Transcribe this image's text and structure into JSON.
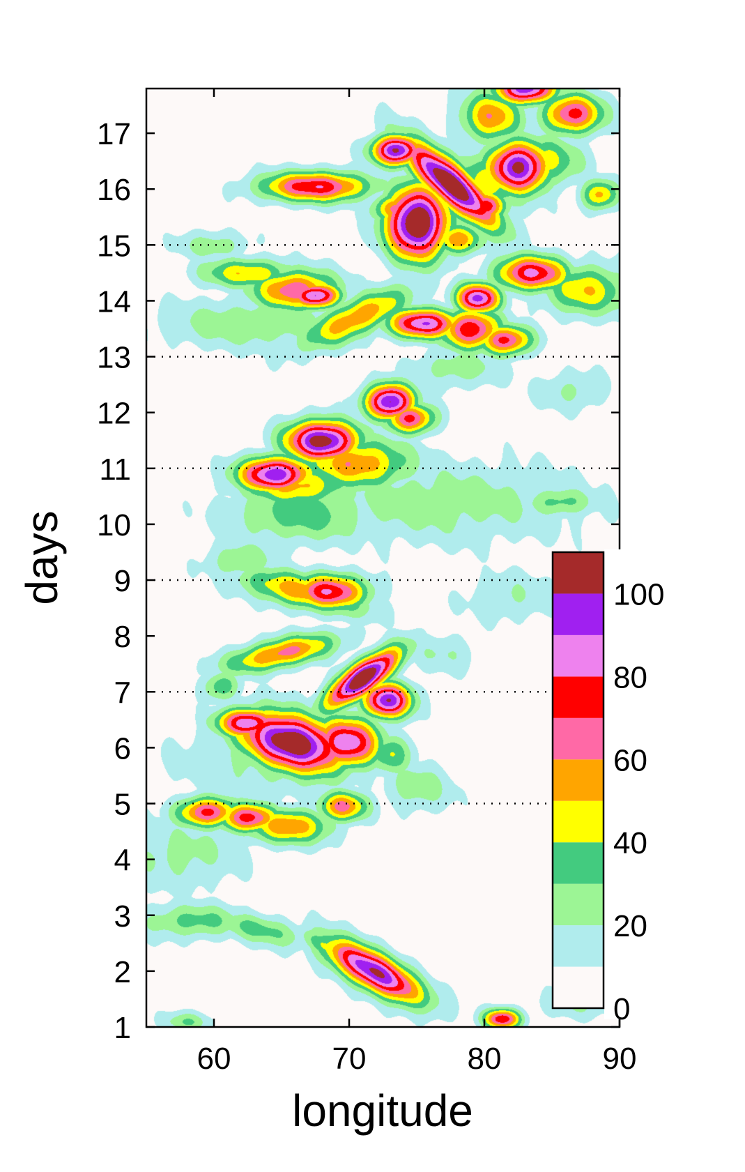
{
  "chart_data": {
    "type": "heatmap",
    "xlabel": "longitude",
    "ylabel": "days",
    "xlim": [
      55,
      90
    ],
    "ylim": [
      1,
      17.8
    ],
    "xticks": [
      60,
      70,
      80,
      90
    ],
    "yticks": [
      1,
      2,
      3,
      4,
      5,
      6,
      7,
      8,
      9,
      10,
      11,
      12,
      13,
      14,
      15,
      16,
      17
    ],
    "reference_lines_days": [
      5,
      7,
      9,
      11,
      13,
      15
    ],
    "colorbar": {
      "ticks": [
        0,
        20,
        40,
        60,
        80,
        100
      ],
      "bounds": [
        0,
        10,
        20,
        30,
        40,
        50,
        60,
        70,
        80,
        90,
        100,
        110
      ],
      "colors": [
        "#fdf9f8",
        "#b0eced",
        "#9cf595",
        "#43cb7f",
        "#ffff00",
        "#ffa500",
        "#ff69a6",
        "#ff0000",
        "#ee82ee",
        "#a020f0",
        "#a52a2a"
      ]
    },
    "blobs": [
      {
        "lon": 71.8,
        "day": 2.0,
        "value": 100,
        "dlon": 4.0,
        "dday": 0.4,
        "tilt": 0.12
      },
      {
        "lon": 69.0,
        "day": 2.35,
        "value": 45,
        "dlon": 2.8,
        "dday": 0.25,
        "tilt": 0.12
      },
      {
        "lon": 58.5,
        "day": 2.9,
        "value": 30,
        "dlon": 4.5,
        "dday": 0.35,
        "tilt": 0.0
      },
      {
        "lon": 63.5,
        "day": 2.75,
        "value": 30,
        "dlon": 4.0,
        "dday": 0.3,
        "tilt": 0.05
      },
      {
        "lon": 59.5,
        "day": 4.85,
        "value": 70,
        "dlon": 2.5,
        "dday": 0.3,
        "tilt": 0.0
      },
      {
        "lon": 62.5,
        "day": 4.75,
        "value": 70,
        "dlon": 2.5,
        "dday": 0.3,
        "tilt": 0.0
      },
      {
        "lon": 65.5,
        "day": 4.6,
        "value": 55,
        "dlon": 3.5,
        "dday": 0.35,
        "tilt": 0.0
      },
      {
        "lon": 69.5,
        "day": 4.95,
        "value": 60,
        "dlon": 2.0,
        "dday": 0.3,
        "tilt": 0.0
      },
      {
        "lon": 62.5,
        "day": 6.45,
        "value": 85,
        "dlon": 2.5,
        "dday": 0.3,
        "tilt": 0.0
      },
      {
        "lon": 65.8,
        "day": 6.1,
        "value": 112,
        "dlon": 4.2,
        "dday": 0.55,
        "tilt": 0.05
      },
      {
        "lon": 69.8,
        "day": 6.1,
        "value": 85,
        "dlon": 2.8,
        "dday": 0.5,
        "tilt": 0.0
      },
      {
        "lon": 71.0,
        "day": 7.25,
        "value": 112,
        "dlon": 3.0,
        "dday": 0.35,
        "tilt": -0.15
      },
      {
        "lon": 72.8,
        "day": 6.85,
        "value": 95,
        "dlon": 2.0,
        "dday": 0.35,
        "tilt": 0.0
      },
      {
        "lon": 65.0,
        "day": 7.7,
        "value": 60,
        "dlon": 4.5,
        "dday": 0.3,
        "tilt": -0.05
      },
      {
        "lon": 66.5,
        "day": 8.8,
        "value": 55,
        "dlon": 5.0,
        "dday": 0.35,
        "tilt": 0.05
      },
      {
        "lon": 68.5,
        "day": 8.8,
        "value": 75,
        "dlon": 3.2,
        "dday": 0.35,
        "tilt": 0.0
      },
      {
        "lon": 64.5,
        "day": 10.9,
        "value": 95,
        "dlon": 3.0,
        "dday": 0.35,
        "tilt": 0.0
      },
      {
        "lon": 68.0,
        "day": 11.5,
        "value": 105,
        "dlon": 3.0,
        "dday": 0.4,
        "tilt": 0.0
      },
      {
        "lon": 70.5,
        "day": 11.1,
        "value": 55,
        "dlon": 4.5,
        "dday": 0.5,
        "tilt": 0.0
      },
      {
        "lon": 66.0,
        "day": 10.7,
        "value": 50,
        "dlon": 4.5,
        "dday": 0.4,
        "tilt": 0.0
      },
      {
        "lon": 66.5,
        "day": 10.2,
        "value": 32,
        "dlon": 6.0,
        "dday": 0.6,
        "tilt": 0.0
      },
      {
        "lon": 73.0,
        "day": 12.2,
        "value": 100,
        "dlon": 2.0,
        "dday": 0.35,
        "tilt": 0.0
      },
      {
        "lon": 74.5,
        "day": 11.9,
        "value": 70,
        "dlon": 2.0,
        "dday": 0.3,
        "tilt": 0.0
      },
      {
        "lon": 76.5,
        "day": 10.4,
        "value": 22,
        "dlon": 12.0,
        "dday": 0.8,
        "tilt": 0.0
      },
      {
        "lon": 63.0,
        "day": 13.6,
        "value": 25,
        "dlon": 8.0,
        "dday": 0.5,
        "tilt": 0.0
      },
      {
        "lon": 66.0,
        "day": 14.2,
        "value": 65,
        "dlon": 3.5,
        "dday": 0.4,
        "tilt": 0.0
      },
      {
        "lon": 67.5,
        "day": 14.1,
        "value": 90,
        "dlon": 2.0,
        "dday": 0.25,
        "tilt": 0.0
      },
      {
        "lon": 62.5,
        "day": 14.5,
        "value": 45,
        "dlon": 4.0,
        "dday": 0.3,
        "tilt": 0.0
      },
      {
        "lon": 70.5,
        "day": 13.7,
        "value": 55,
        "dlon": 4.5,
        "dday": 0.4,
        "tilt": -0.1
      },
      {
        "lon": 75.5,
        "day": 13.6,
        "value": 85,
        "dlon": 3.0,
        "dday": 0.3,
        "tilt": 0.0
      },
      {
        "lon": 79.0,
        "day": 13.5,
        "value": 75,
        "dlon": 2.5,
        "dday": 0.4,
        "tilt": 0.0
      },
      {
        "lon": 79.5,
        "day": 14.05,
        "value": 90,
        "dlon": 1.8,
        "dday": 0.3,
        "tilt": 0.0
      },
      {
        "lon": 81.5,
        "day": 13.3,
        "value": 70,
        "dlon": 2.2,
        "dday": 0.3,
        "tilt": 0.0
      },
      {
        "lon": 83.5,
        "day": 14.5,
        "value": 78,
        "dlon": 3.0,
        "dday": 0.35,
        "tilt": 0.0
      },
      {
        "lon": 87.5,
        "day": 14.2,
        "value": 45,
        "dlon": 3.5,
        "dday": 0.5,
        "tilt": 0.0
      },
      {
        "lon": 75.0,
        "day": 15.4,
        "value": 115,
        "dlon": 2.5,
        "dday": 0.7,
        "tilt": 0.0
      },
      {
        "lon": 73.5,
        "day": 15.65,
        "value": 60,
        "dlon": 2.0,
        "dday": 0.3,
        "tilt": 0.0
      },
      {
        "lon": 78.0,
        "day": 15.1,
        "value": 55,
        "dlon": 2.0,
        "dday": 0.3,
        "tilt": 0.0
      },
      {
        "lon": 77.5,
        "day": 16.1,
        "value": 115,
        "dlon": 3.8,
        "dday": 0.45,
        "tilt": 0.18
      },
      {
        "lon": 73.5,
        "day": 16.7,
        "value": 100,
        "dlon": 2.0,
        "dday": 0.3,
        "tilt": 0.0
      },
      {
        "lon": 67.5,
        "day": 16.05,
        "value": 75,
        "dlon": 4.5,
        "dday": 0.3,
        "tilt": 0.0
      },
      {
        "lon": 82.5,
        "day": 16.4,
        "value": 100,
        "dlon": 2.5,
        "dday": 0.5,
        "tilt": 0.0
      },
      {
        "lon": 80.0,
        "day": 15.7,
        "value": 75,
        "dlon": 1.8,
        "dday": 0.3,
        "tilt": 0.0
      },
      {
        "lon": 86.5,
        "day": 17.35,
        "value": 70,
        "dlon": 2.5,
        "dday": 0.4,
        "tilt": 0.0
      },
      {
        "lon": 83.0,
        "day": 17.8,
        "value": 95,
        "dlon": 2.5,
        "dday": 0.3,
        "tilt": 0.0
      },
      {
        "lon": 80.5,
        "day": 17.3,
        "value": 55,
        "dlon": 2.5,
        "dday": 0.5,
        "tilt": 0.0
      },
      {
        "lon": 88.5,
        "day": 15.9,
        "value": 50,
        "dlon": 1.5,
        "dday": 0.3,
        "tilt": 0.0
      },
      {
        "lon": 84.5,
        "day": 16.5,
        "value": 40,
        "dlon": 3.0,
        "dday": 0.5,
        "tilt": 0.0
      },
      {
        "lon": 80.0,
        "day": 16.1,
        "value": 40,
        "dlon": 4.0,
        "dday": 0.6,
        "tilt": 0.0
      },
      {
        "lon": 81.3,
        "day": 1.15,
        "value": 75,
        "dlon": 1.5,
        "dday": 0.2,
        "tilt": 0.0
      },
      {
        "lon": 57.5,
        "day": 4.1,
        "value": 20,
        "dlon": 5.0,
        "dday": 0.7,
        "tilt": 0.0
      },
      {
        "lon": 65.0,
        "day": 5.8,
        "value": 22,
        "dlon": 8.0,
        "dday": 0.8,
        "tilt": 0.0
      },
      {
        "lon": 73.0,
        "day": 5.9,
        "value": 35,
        "dlon": 2.0,
        "dday": 0.4,
        "tilt": 0.0
      },
      {
        "lon": 75.0,
        "day": 5.3,
        "value": 22,
        "dlon": 3.0,
        "dday": 0.5,
        "tilt": 0.0
      },
      {
        "lon": 60.5,
        "day": 7.1,
        "value": 35,
        "dlon": 1.5,
        "dday": 0.3,
        "tilt": 0.0
      },
      {
        "lon": 62.0,
        "day": 9.35,
        "value": 25,
        "dlon": 3.0,
        "dday": 0.4,
        "tilt": 0.0
      },
      {
        "lon": 85.5,
        "day": 10.4,
        "value": 30,
        "dlon": 3.0,
        "dday": 0.3,
        "tilt": 0.0
      },
      {
        "lon": 78.0,
        "day": 12.8,
        "value": 22,
        "dlon": 4.0,
        "dday": 0.4,
        "tilt": 0.0
      },
      {
        "lon": 60.0,
        "day": 15.0,
        "value": 22,
        "dlon": 3.0,
        "dday": 0.3,
        "tilt": 0.0
      },
      {
        "lon": 86.5,
        "day": 12.4,
        "value": 18,
        "dlon": 3.0,
        "dday": 0.4,
        "tilt": 0.0
      },
      {
        "lon": 58.0,
        "day": 1.1,
        "value": 25,
        "dlon": 2.0,
        "dday": 0.2,
        "tilt": 0.0
      },
      {
        "lon": 82.0,
        "day": 8.7,
        "value": 16,
        "dlon": 4.0,
        "dday": 0.5,
        "tilt": 0.0
      },
      {
        "lon": 77.0,
        "day": 7.7,
        "value": 16,
        "dlon": 3.0,
        "dday": 0.4,
        "tilt": 0.0
      },
      {
        "lon": 86.5,
        "day": 1.4,
        "value": 16,
        "dlon": 3.0,
        "dday": 0.3,
        "tilt": 0.0
      }
    ]
  }
}
